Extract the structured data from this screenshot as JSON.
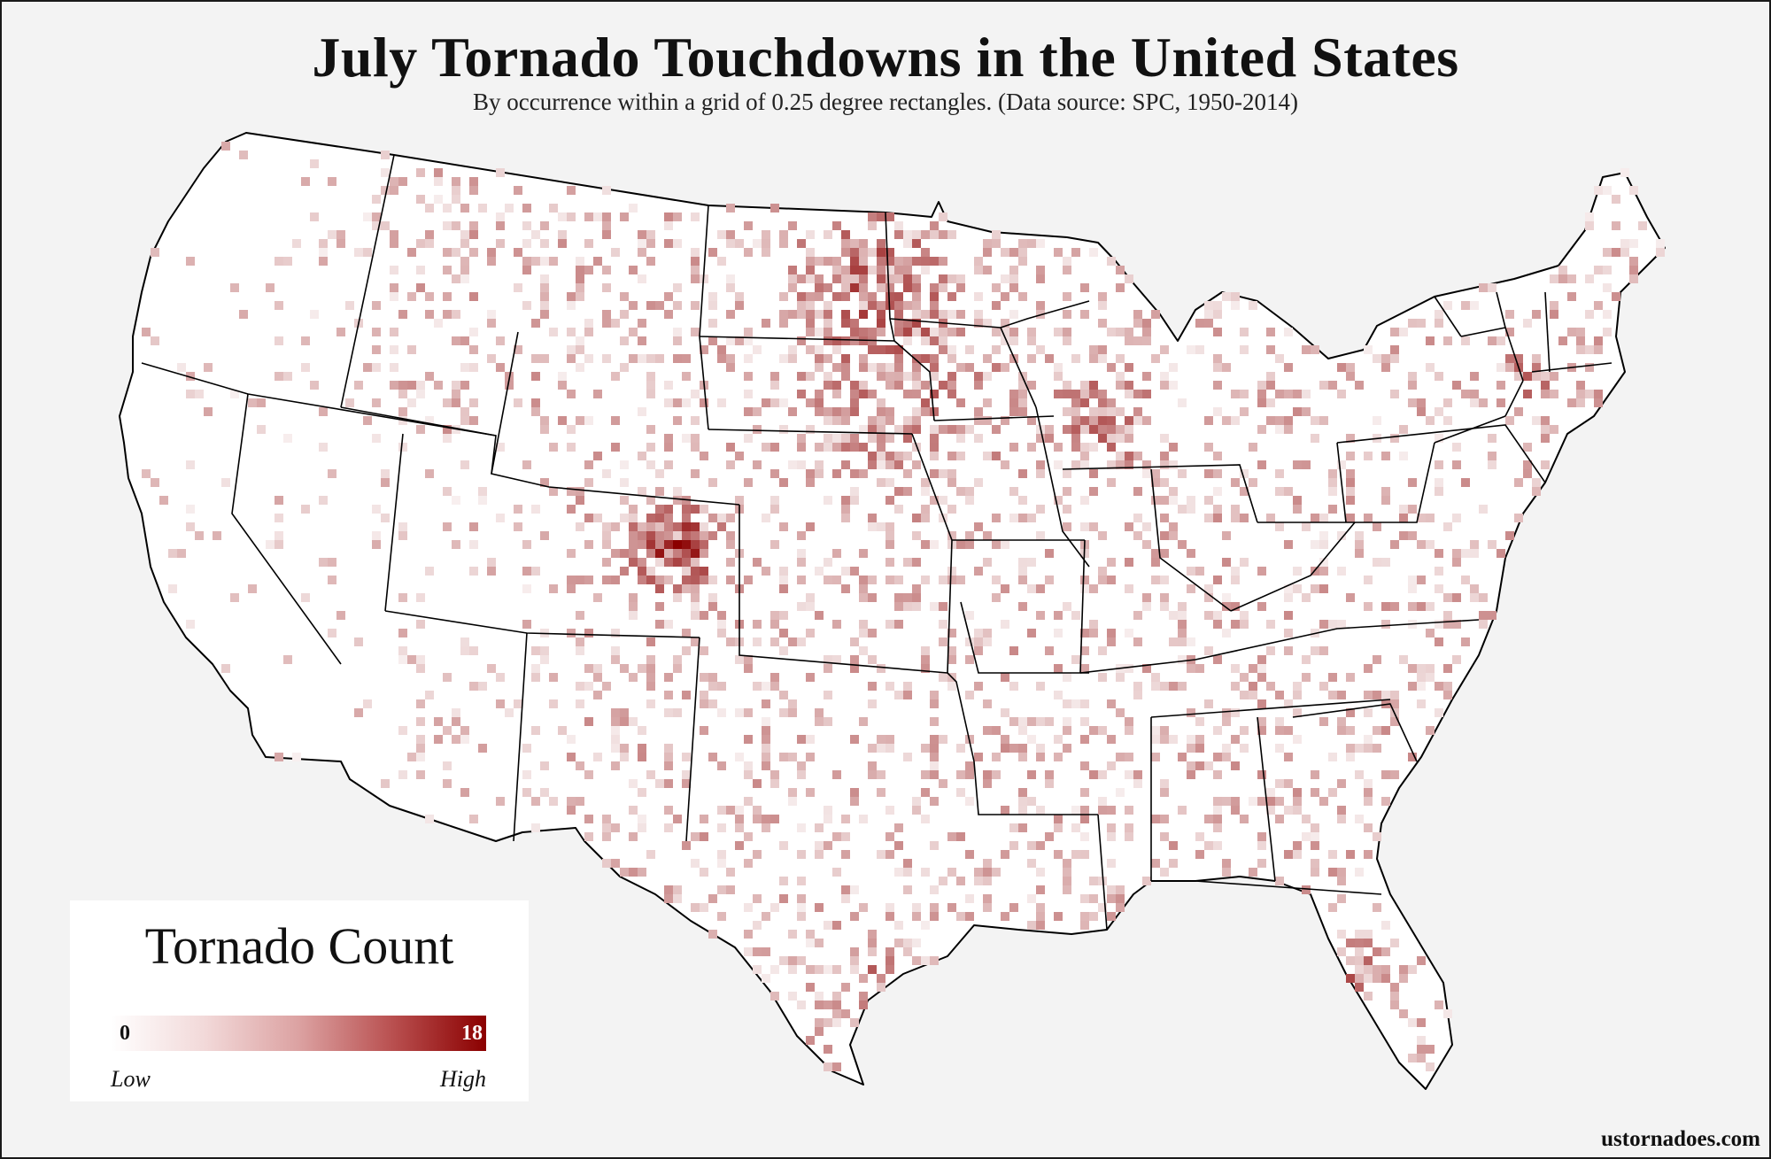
{
  "title": "July Tornado Touchdowns in the United States",
  "subtitle": "By occurrence within a grid of 0.25 degree rectangles. (Data source: SPC, 1950-2014)",
  "legend": {
    "title": "Tornado Count",
    "min": "0",
    "max": "18",
    "low_label": "Low",
    "high_label": "High",
    "color_low": "#ffffff",
    "color_high": "#8b0000"
  },
  "site": "ustornadoes.com",
  "colors": {
    "background": "#f3f3f3",
    "land": "#ffffff",
    "border": "#000000"
  }
}
